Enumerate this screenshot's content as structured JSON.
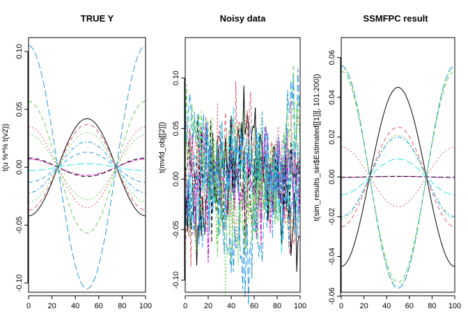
{
  "figure": {
    "description_colors": {
      "black": "#000000",
      "red": "#DF536B",
      "green": "#61D04F",
      "blue": "#2297E6",
      "cyan": "#28E2E5",
      "magenta": "#CD0BBC",
      "yellow": "#F5C710",
      "gray": "#9E9E9E"
    }
  },
  "chart_data": [
    {
      "type": "line",
      "title": "TRUE Y",
      "xlabel": "",
      "ylabel": "t(u %*% t(v2))",
      "xlim": [
        0,
        100
      ],
      "ylim": [
        -0.108,
        0.112
      ],
      "xticks": [
        0,
        20,
        40,
        60,
        80,
        100
      ],
      "xtick_labels": [
        "0",
        "20",
        "40",
        "60",
        "80",
        "100"
      ],
      "yticks": [
        -0.1,
        -0.05,
        0.0,
        0.05,
        0.1
      ],
      "ytick_labels": [
        "-0.10",
        "-0.05",
        "0.00",
        "0.05",
        "0.10"
      ],
      "curve_shape": "cosine with period 100 (y = a*cos(2*pi*(x-50)/100)), zero crossings near x=25 and x=75",
      "series": [
        {
          "color": "#000000",
          "dash": "solid",
          "amplitude_at_x50": 0.042
        },
        {
          "color": "#DF536B",
          "dash": "dashed",
          "amplitude_at_x50": 0.037
        },
        {
          "color": "#61D04F",
          "dash": "dotted",
          "amplitude_at_x50": 0.03
        },
        {
          "color": "#2297E6",
          "dash": "dotdash",
          "amplitude_at_x50": 0.022
        },
        {
          "color": "#28E2E5",
          "dash": "longdash",
          "amplitude_at_x50": 0.003
        },
        {
          "color": "#CD0BBC",
          "dash": "twodash",
          "amplitude_at_x50": -0.007
        },
        {
          "color": "#000000",
          "dash": "dashed",
          "amplitude_at_x50": -0.008
        },
        {
          "color": "#DF536B",
          "dash": "dotted",
          "amplitude_at_x50": -0.035
        },
        {
          "color": "#61D04F",
          "dash": "dashed",
          "amplitude_at_x50": -0.057
        },
        {
          "color": "#2297E6",
          "dash": "longdash",
          "amplitude_at_x50": -0.105
        },
        {
          "color": "#61D04F",
          "dash": "dotted",
          "amplitude_at_x50": -0.028
        },
        {
          "color": "#2297E6",
          "dash": "dashed",
          "amplitude_at_x50": 0.013
        }
      ]
    },
    {
      "type": "line",
      "title": "Noisy data",
      "xlabel": "",
      "ylabel": "t(mvfd_obj[[2]])",
      "xlim": [
        0,
        100
      ],
      "ylim": [
        -0.112,
        0.14
      ],
      "xticks": [
        0,
        20,
        40,
        60,
        80,
        100
      ],
      "xtick_labels": [
        "0",
        "20",
        "40",
        "60",
        "80",
        "100"
      ],
      "yticks": [
        -0.1,
        -0.05,
        0.0,
        0.05,
        0.1
      ],
      "ytick_labels": [
        "-0.10",
        "-0.05",
        "0.00",
        "0.05",
        "0.10"
      ],
      "curve_shape": "same cosine curves as TRUE Y plus heavy random noise (approx sd 0.025)",
      "noise_sd": 0.025,
      "series": [
        {
          "color": "#000000",
          "dash": "solid",
          "amplitude_at_x50": 0.042
        },
        {
          "color": "#DF536B",
          "dash": "dashed",
          "amplitude_at_x50": 0.037
        },
        {
          "color": "#61D04F",
          "dash": "dotted",
          "amplitude_at_x50": 0.03
        },
        {
          "color": "#2297E6",
          "dash": "dotdash",
          "amplitude_at_x50": 0.022
        },
        {
          "color": "#28E2E5",
          "dash": "longdash",
          "amplitude_at_x50": 0.003
        },
        {
          "color": "#CD0BBC",
          "dash": "twodash",
          "amplitude_at_x50": -0.007
        },
        {
          "color": "#000000",
          "dash": "dashed",
          "amplitude_at_x50": -0.008
        },
        {
          "color": "#DF536B",
          "dash": "dotted",
          "amplitude_at_x50": -0.035
        },
        {
          "color": "#61D04F",
          "dash": "dashed",
          "amplitude_at_x50": -0.057
        },
        {
          "color": "#2297E6",
          "dash": "longdash",
          "amplitude_at_x50": -0.072
        },
        {
          "color": "#61D04F",
          "dash": "dotted",
          "amplitude_at_x50": -0.028
        },
        {
          "color": "#2297E6",
          "dash": "dashed",
          "amplitude_at_x50": 0.013
        }
      ]
    },
    {
      "type": "line",
      "title": "SSMFPC result",
      "xlabel": "",
      "ylabel": "t(sim_results_sin$Estimated[[1]][, 101:200])",
      "xlim": [
        0,
        100
      ],
      "ylim": [
        -0.058,
        0.07
      ],
      "xticks": [
        0,
        20,
        40,
        60,
        80,
        100
      ],
      "xtick_labels": [
        "0",
        "20",
        "40",
        "60",
        "80",
        "100"
      ],
      "yticks": [
        -0.06,
        -0.04,
        -0.02,
        0.0,
        0.02,
        0.04,
        0.06
      ],
      "ytick_labels": [
        "-0.06",
        "-0.04",
        "-0.02",
        "0.00",
        "0.02",
        "0.04",
        "0.06"
      ],
      "curve_shape": "cosine with period 100, zero crossings near x=25 and x=75",
      "series": [
        {
          "color": "#000000",
          "dash": "solid",
          "amplitude_at_x50": 0.045
        },
        {
          "color": "#DF536B",
          "dash": "dashed",
          "amplitude_at_x50": 0.025
        },
        {
          "color": "#61D04F",
          "dash": "dotted",
          "amplitude_at_x50": 0.021
        },
        {
          "color": "#2297E6",
          "dash": "dotdash",
          "amplitude_at_x50": 0.02
        },
        {
          "color": "#28E2E5",
          "dash": "longdash",
          "amplitude_at_x50": 0.009
        },
        {
          "color": "#CD0BBC",
          "dash": "twodash",
          "amplitude_at_x50": 0.0003
        },
        {
          "color": "#000000",
          "dash": "dashed",
          "amplitude_at_x50": 0.0002
        },
        {
          "color": "#DF536B",
          "dash": "dotted",
          "amplitude_at_x50": -0.015
        },
        {
          "color": "#61D04F",
          "dash": "dashed",
          "amplitude_at_x50": -0.053
        },
        {
          "color": "#2297E6",
          "dash": "longdash",
          "amplitude_at_x50": -0.056
        },
        {
          "color": "#61D04F",
          "dash": "dotted",
          "amplitude_at_x50": -0.055
        }
      ]
    }
  ]
}
